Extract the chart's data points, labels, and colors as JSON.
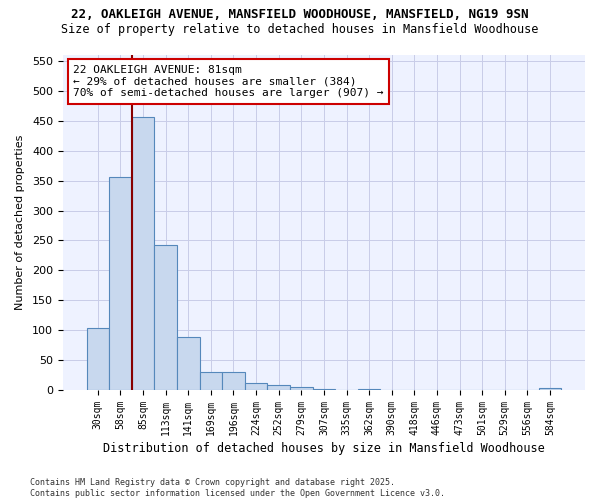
{
  "title1": "22, OAKLEIGH AVENUE, MANSFIELD WOODHOUSE, MANSFIELD, NG19 9SN",
  "title2": "Size of property relative to detached houses in Mansfield Woodhouse",
  "xlabel": "Distribution of detached houses by size in Mansfield Woodhouse",
  "ylabel": "Number of detached properties",
  "categories": [
    "30sqm",
    "58sqm",
    "85sqm",
    "113sqm",
    "141sqm",
    "169sqm",
    "196sqm",
    "224sqm",
    "252sqm",
    "279sqm",
    "307sqm",
    "335sqm",
    "362sqm",
    "390sqm",
    "418sqm",
    "446sqm",
    "473sqm",
    "501sqm",
    "529sqm",
    "556sqm",
    "584sqm"
  ],
  "values": [
    103,
    356,
    456,
    243,
    88,
    30,
    30,
    12,
    8,
    5,
    2,
    0,
    1,
    0,
    0,
    0,
    0,
    0,
    0,
    0,
    3
  ],
  "bar_color": "#c8d8ee",
  "bar_edge_color": "#5588bb",
  "highlight_line_color": "#880000",
  "annotation_text": "22 OAKLEIGH AVENUE: 81sqm\n← 29% of detached houses are smaller (384)\n70% of semi-detached houses are larger (907) →",
  "annotation_box_color": "#ffffff",
  "annotation_box_edge_color": "#cc0000",
  "ylim": [
    0,
    560
  ],
  "yticks": [
    0,
    50,
    100,
    150,
    200,
    250,
    300,
    350,
    400,
    450,
    500,
    550
  ],
  "footnote": "Contains HM Land Registry data © Crown copyright and database right 2025.\nContains public sector information licensed under the Open Government Licence v3.0.",
  "bg_color": "#ffffff",
  "plot_bg_color": "#eef2ff",
  "grid_color": "#c8cce8"
}
